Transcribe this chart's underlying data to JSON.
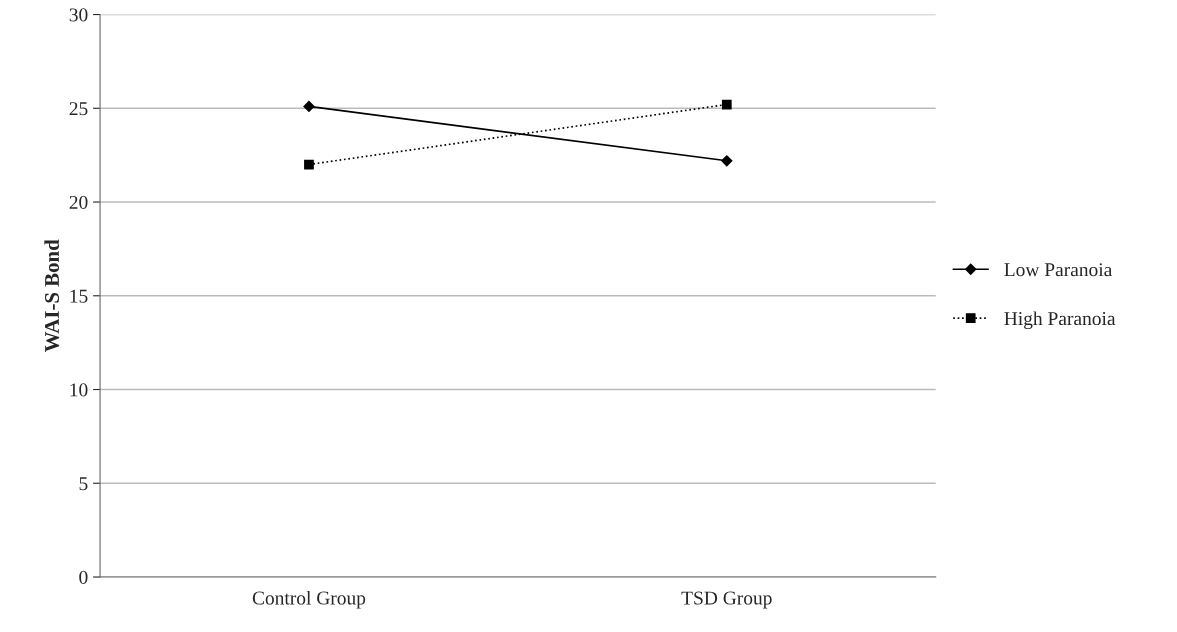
{
  "chart_data": {
    "type": "line",
    "ylabel": "WAI-S Bond",
    "categories": [
      "Control Group",
      "TSD Group"
    ],
    "series": [
      {
        "name": "Low Paranoia",
        "color": "#000000",
        "values": [
          25.1,
          22.2
        ],
        "marker": "diamond",
        "line_style": "solid"
      },
      {
        "name": "High Paranoia",
        "color": "#000000",
        "values": [
          22.0,
          25.2
        ],
        "marker": "square",
        "line_style": "dotted"
      }
    ],
    "ylim": [
      0,
      30
    ],
    "yticks": [
      0,
      5,
      10,
      15,
      20,
      25,
      30
    ],
    "grid": "y",
    "legend": "right"
  }
}
